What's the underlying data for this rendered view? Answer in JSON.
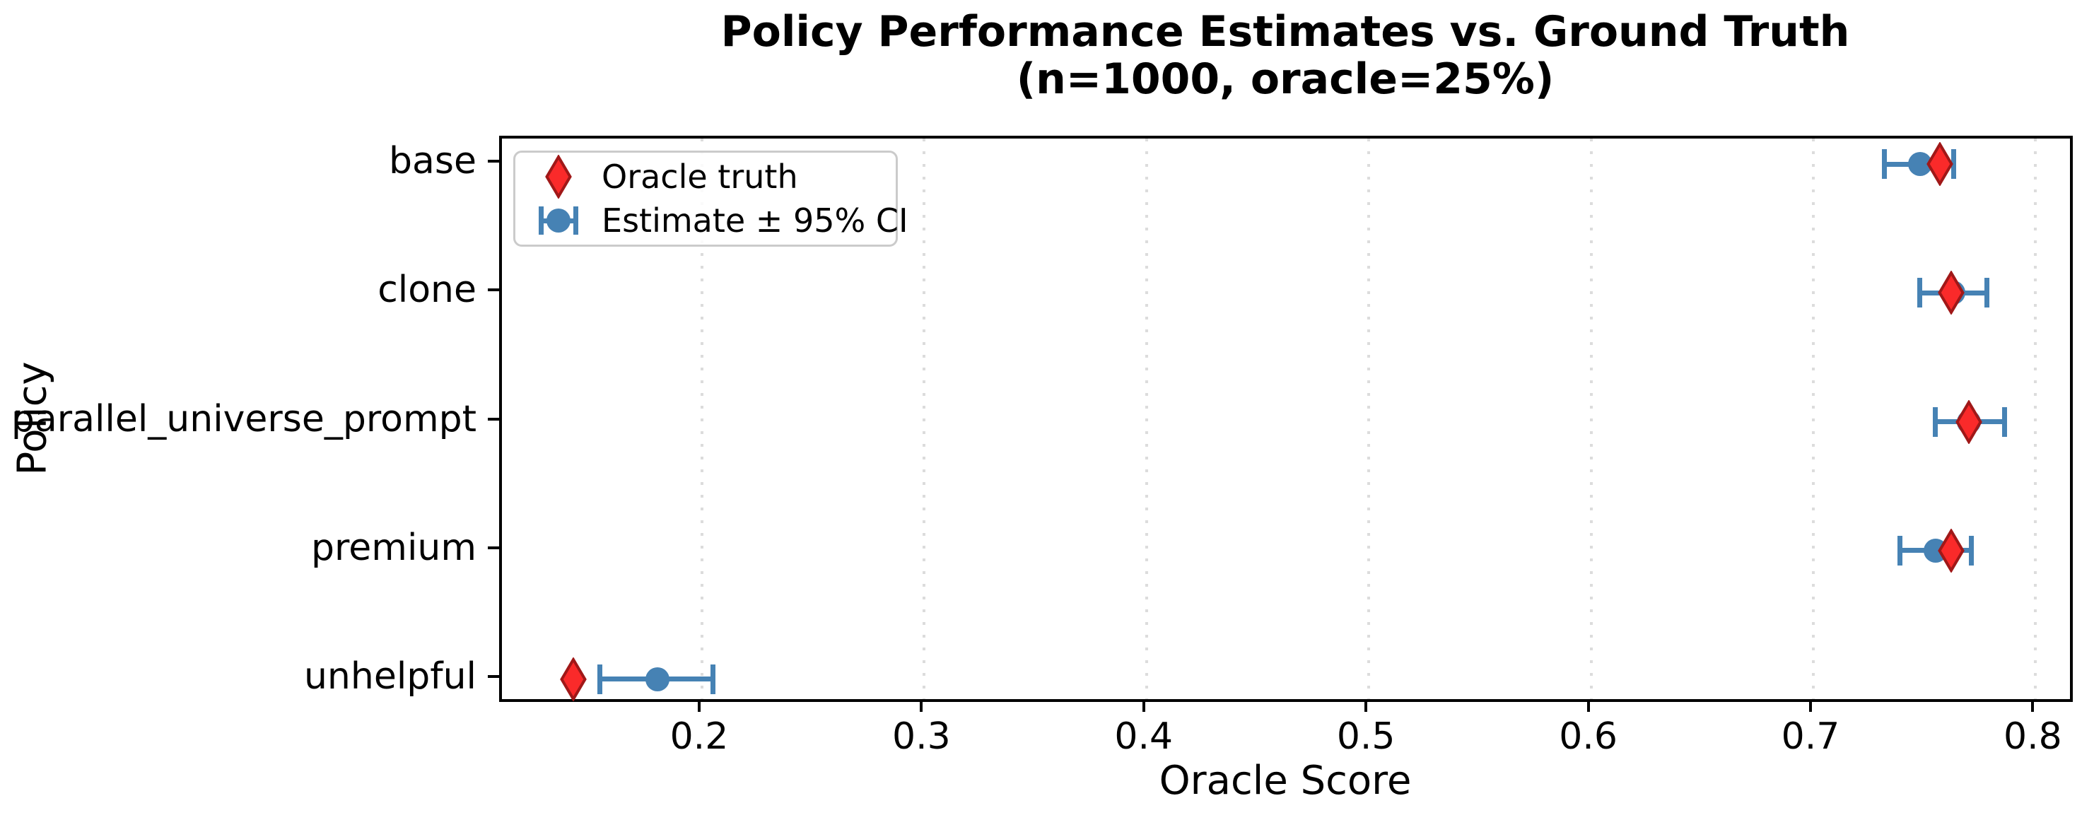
{
  "title": {
    "line1": "Policy Performance Estimates vs. Ground Truth",
    "line2": "(n=1000, oracle=25%)"
  },
  "chart_data": {
    "type": "scatter",
    "orientation": "horizontal",
    "title": "Policy Performance Estimates vs. Ground Truth",
    "subtitle": "(n=1000, oracle=25%)",
    "xlabel": "Oracle Score",
    "ylabel": "Policy",
    "xlim": [
      0.11,
      0.818
    ],
    "x_ticks": [
      0.2,
      0.3,
      0.4,
      0.5,
      0.6,
      0.7,
      0.8
    ],
    "grid": "vertical dotted gridlines at each x tick",
    "categories": [
      "base",
      "clone",
      "parallel_universe_prompt",
      "premium",
      "unhelpful"
    ],
    "series": [
      {
        "name": "Oracle truth",
        "marker": "thin-diamond",
        "values": [
          0.757,
          0.762,
          0.77,
          0.762,
          0.142
        ]
      },
      {
        "name": "Estimate",
        "marker": "circle",
        "values": [
          0.748,
          0.763,
          0.77,
          0.755,
          0.18
        ]
      },
      {
        "name": "CI low (95%)",
        "values": [
          0.732,
          0.748,
          0.755,
          0.739,
          0.154
        ]
      },
      {
        "name": "CI high (95%)",
        "values": [
          0.763,
          0.778,
          0.786,
          0.771,
          0.205
        ]
      }
    ],
    "legend": {
      "position": "upper left",
      "entries": [
        {
          "label": "Oracle truth",
          "icon": "diamond-icon"
        },
        {
          "label": "Estimate ± 95% CI",
          "icon": "circle-errorbar-icon"
        }
      ]
    },
    "colors": {
      "oracle_fill": "#fa2a2a",
      "oracle_edge": "#a01818",
      "estimate_blue": "#4682b4",
      "gridline": "#dcdcdc",
      "spine": "#000000"
    }
  }
}
